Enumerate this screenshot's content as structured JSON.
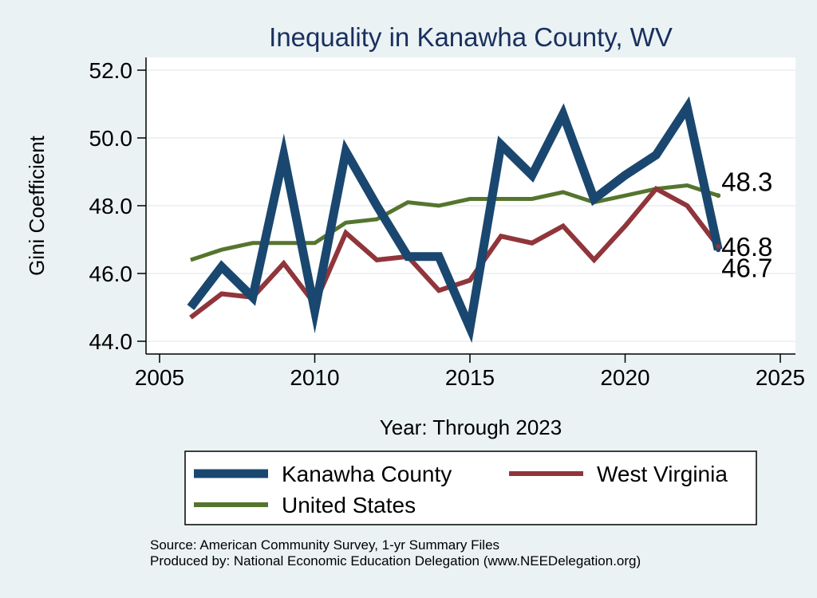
{
  "chart_data": {
    "type": "line",
    "title": "Inequality in Kanawha County, WV",
    "xlabel": "Year: Through 2023",
    "ylabel": "Gini Coefficient",
    "xlim": [
      2005,
      2025
    ],
    "ylim": [
      44.0,
      52.0
    ],
    "xticks": [
      2005,
      2010,
      2015,
      2020,
      2025
    ],
    "yticks": [
      44.0,
      46.0,
      48.0,
      50.0,
      52.0
    ],
    "ytick_labels": [
      "44.0",
      "46.0",
      "48.0",
      "50.0",
      "52.0"
    ],
    "grid": true,
    "legend_position": "bottom",
    "series": [
      {
        "name": "Kanawha County",
        "color": "#1a476f",
        "x": [
          2006,
          2007,
          2008,
          2009,
          2010,
          2011,
          2012,
          2013,
          2014,
          2015,
          2016,
          2017,
          2018,
          2019,
          2020,
          2021,
          2022,
          2023
        ],
        "values": [
          45.0,
          46.2,
          45.3,
          49.5,
          44.9,
          49.6,
          48.0,
          46.5,
          46.5,
          44.4,
          49.8,
          48.9,
          50.7,
          48.2,
          48.9,
          49.5,
          50.9,
          46.7
        ],
        "end_label": "46.7"
      },
      {
        "name": "West Virginia",
        "color": "#90353b",
        "x": [
          2006,
          2007,
          2008,
          2009,
          2010,
          2011,
          2012,
          2013,
          2014,
          2015,
          2016,
          2017,
          2018,
          2019,
          2020,
          2021,
          2022,
          2023
        ],
        "values": [
          44.7,
          45.4,
          45.3,
          46.3,
          45.1,
          47.2,
          46.4,
          46.5,
          45.5,
          45.8,
          47.1,
          46.9,
          47.4,
          46.4,
          47.4,
          48.5,
          48.0,
          46.8
        ],
        "end_label": "46.8"
      },
      {
        "name": "United States",
        "color": "#55752f",
        "x": [
          2006,
          2007,
          2008,
          2009,
          2010,
          2011,
          2012,
          2013,
          2014,
          2015,
          2016,
          2017,
          2018,
          2019,
          2020,
          2021,
          2022,
          2023
        ],
        "values": [
          46.4,
          46.7,
          46.9,
          46.9,
          46.9,
          47.5,
          47.6,
          48.1,
          48.0,
          48.2,
          48.2,
          48.2,
          48.4,
          48.1,
          48.3,
          48.5,
          48.6,
          48.3
        ],
        "end_label": "48.3"
      }
    ]
  },
  "footer": {
    "source": "Source: American Community Survey, 1-yr Summary Files",
    "produced": "Produced by: National Economic Education Delegation (www.NEEDelegation.org)"
  }
}
